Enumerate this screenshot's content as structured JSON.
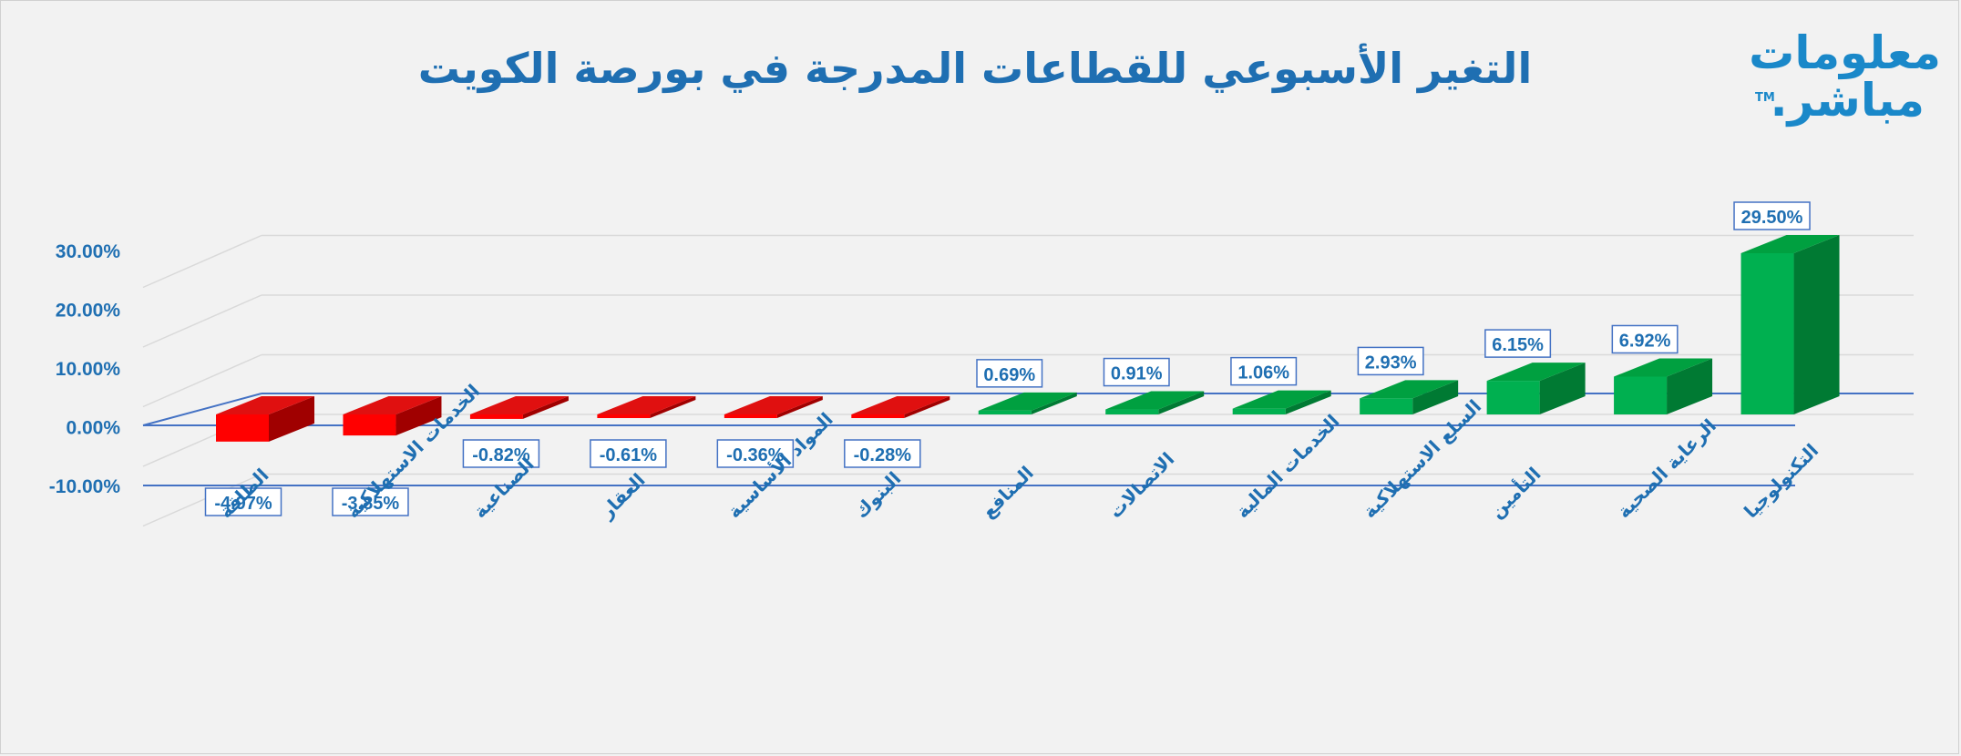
{
  "title": "التغير الأسبوعي للقطاعات المدرجة في بورصة الكويت",
  "logo": {
    "line1": "معلومات",
    "line2": "مباشر.",
    "tm": "TM"
  },
  "colors": {
    "negative_front": "#ff0000",
    "negative_top": "#e01010",
    "negative_side": "#a00000",
    "positive_front": "#00b050",
    "positive_top": "#00a040",
    "positive_side": "#007a33",
    "text": "#1f6fb2",
    "axis": "#4472c4",
    "grid": "#d9d9d9"
  },
  "chart_data": {
    "type": "bar",
    "title": "التغير الأسبوعي للقطاعات المدرجة في بورصة الكويت",
    "categories": [
      "الطاقة",
      "الخدمات الاستهلاكية",
      "الصناعية",
      "العقار",
      "المواد الأساسية",
      "البنوك",
      "المنافع",
      "الاتصالات",
      "الخدمات المالية",
      "السلع الاستهلاكية",
      "التأمين",
      "الرعاية الصحية",
      "التكنولوجيا"
    ],
    "values": [
      -4.97,
      -3.85,
      -0.82,
      -0.61,
      -0.36,
      -0.28,
      0.69,
      0.91,
      1.06,
      2.93,
      6.15,
      6.92,
      29.5
    ],
    "data_labels": [
      "-4.97%",
      "-3.85%",
      "-0.82%",
      "-0.61%",
      "-0.36%",
      "-0.28%",
      "0.69%",
      "0.91%",
      "1.06%",
      "2.93%",
      "6.15%",
      "6.92%",
      "29.50%"
    ],
    "ylim": [
      -10,
      30
    ],
    "yticks": [
      -10,
      0,
      10,
      20,
      30
    ],
    "ytick_labels": [
      "-10.00%",
      "0.00%",
      "10.00%",
      "20.00%",
      "30.00%"
    ],
    "grid": true,
    "style": "3d-bar",
    "xlabel": "",
    "ylabel": ""
  }
}
